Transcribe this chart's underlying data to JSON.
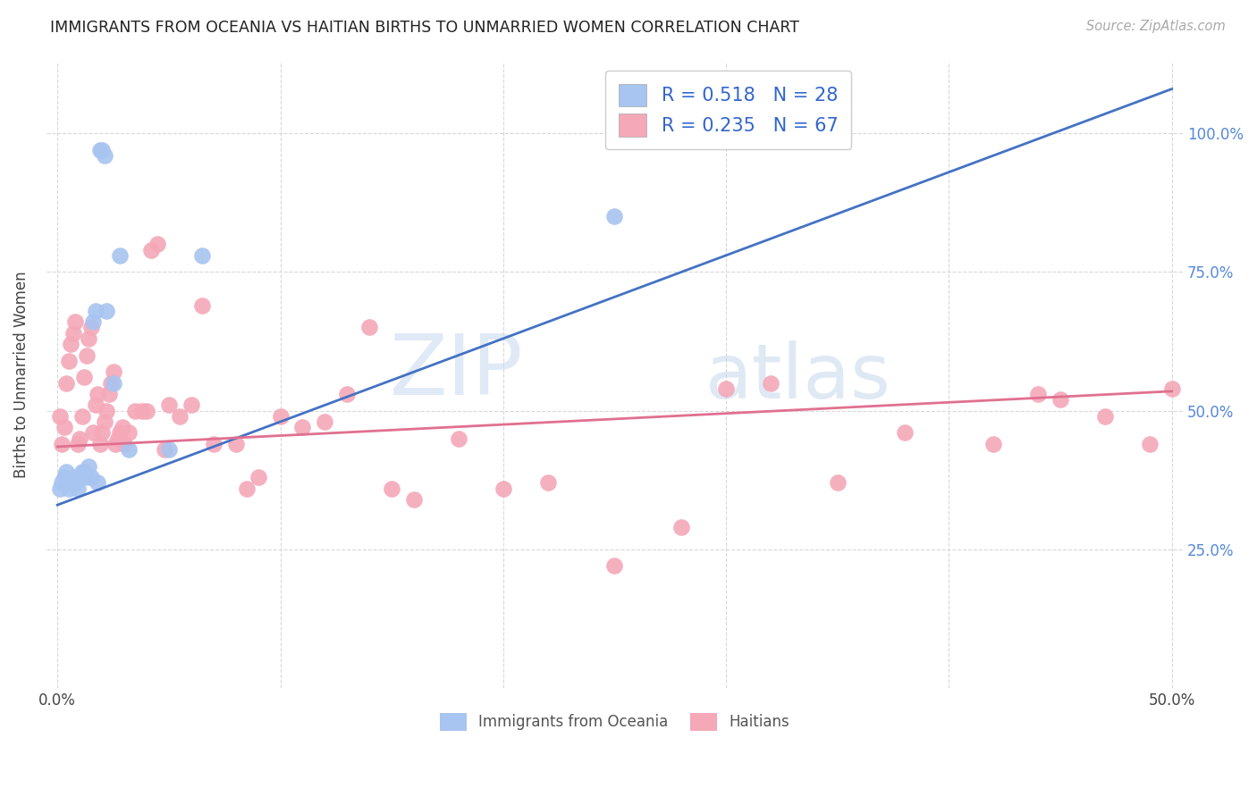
{
  "title": "IMMIGRANTS FROM OCEANIA VS HAITIAN BIRTHS TO UNMARRIED WOMEN CORRELATION CHART",
  "source": "Source: ZipAtlas.com",
  "ylabel": "Births to Unmarried Women",
  "ytick_labels_right": [
    "25.0%",
    "50.0%",
    "75.0%",
    "100.0%"
  ],
  "xtick_positions": [
    0.0,
    0.1,
    0.2,
    0.3,
    0.4,
    0.5
  ],
  "xtick_labels": [
    "0.0%",
    "",
    "",
    "",
    "",
    "50.0%"
  ],
  "legend_line1": "R = 0.518   N = 28",
  "legend_line2": "R = 0.235   N = 67",
  "blue_color": "#A8C4F0",
  "pink_color": "#F4A8B8",
  "blue_line_color": "#4472C4",
  "pink_line_color": "#E07090",
  "watermark_zip": "ZIP",
  "watermark_atlas": "atlas",
  "background_color": "#FFFFFF",
  "grid_color": "#D8D8D8",
  "blue_line_x0": 0.0,
  "blue_line_y0": 0.33,
  "blue_line_x1": 0.5,
  "blue_line_y1": 1.08,
  "pink_line_x0": 0.0,
  "pink_line_y0": 0.435,
  "pink_line_x1": 0.5,
  "pink_line_y1": 0.535,
  "xlim_min": -0.005,
  "xlim_max": 0.505,
  "ylim_min": 0.0,
  "ylim_max": 1.13,
  "blue_x": [
    0.001,
    0.002,
    0.003,
    0.004,
    0.005,
    0.006,
    0.007,
    0.008,
    0.009,
    0.01,
    0.011,
    0.012,
    0.013,
    0.014,
    0.015,
    0.016,
    0.017,
    0.018,
    0.019,
    0.02,
    0.021,
    0.022,
    0.025,
    0.028,
    0.032,
    0.05,
    0.065,
    0.25
  ],
  "blue_y": [
    0.36,
    0.37,
    0.38,
    0.39,
    0.36,
    0.37,
    0.38,
    0.37,
    0.36,
    0.38,
    0.39,
    0.39,
    0.38,
    0.4,
    0.38,
    0.66,
    0.68,
    0.37,
    0.97,
    0.97,
    0.96,
    0.68,
    0.55,
    0.78,
    0.43,
    0.43,
    0.78,
    0.85
  ],
  "pink_x": [
    0.001,
    0.002,
    0.003,
    0.004,
    0.005,
    0.006,
    0.007,
    0.008,
    0.009,
    0.01,
    0.011,
    0.012,
    0.013,
    0.014,
    0.015,
    0.016,
    0.017,
    0.018,
    0.019,
    0.02,
    0.021,
    0.022,
    0.023,
    0.024,
    0.025,
    0.026,
    0.027,
    0.028,
    0.029,
    0.03,
    0.032,
    0.035,
    0.038,
    0.04,
    0.042,
    0.045,
    0.048,
    0.05,
    0.055,
    0.06,
    0.065,
    0.07,
    0.08,
    0.085,
    0.09,
    0.1,
    0.11,
    0.12,
    0.13,
    0.14,
    0.15,
    0.16,
    0.18,
    0.2,
    0.22,
    0.25,
    0.28,
    0.3,
    0.32,
    0.35,
    0.38,
    0.42,
    0.44,
    0.45,
    0.47,
    0.49,
    0.5
  ],
  "pink_y": [
    0.49,
    0.44,
    0.47,
    0.55,
    0.59,
    0.62,
    0.64,
    0.66,
    0.44,
    0.45,
    0.49,
    0.56,
    0.6,
    0.63,
    0.65,
    0.46,
    0.51,
    0.53,
    0.44,
    0.46,
    0.48,
    0.5,
    0.53,
    0.55,
    0.57,
    0.44,
    0.45,
    0.46,
    0.47,
    0.44,
    0.46,
    0.5,
    0.5,
    0.5,
    0.79,
    0.8,
    0.43,
    0.51,
    0.49,
    0.51,
    0.69,
    0.44,
    0.44,
    0.36,
    0.38,
    0.49,
    0.47,
    0.48,
    0.53,
    0.65,
    0.36,
    0.34,
    0.45,
    0.36,
    0.37,
    0.22,
    0.29,
    0.54,
    0.55,
    0.37,
    0.46,
    0.44,
    0.53,
    0.52,
    0.49,
    0.44,
    0.54
  ]
}
